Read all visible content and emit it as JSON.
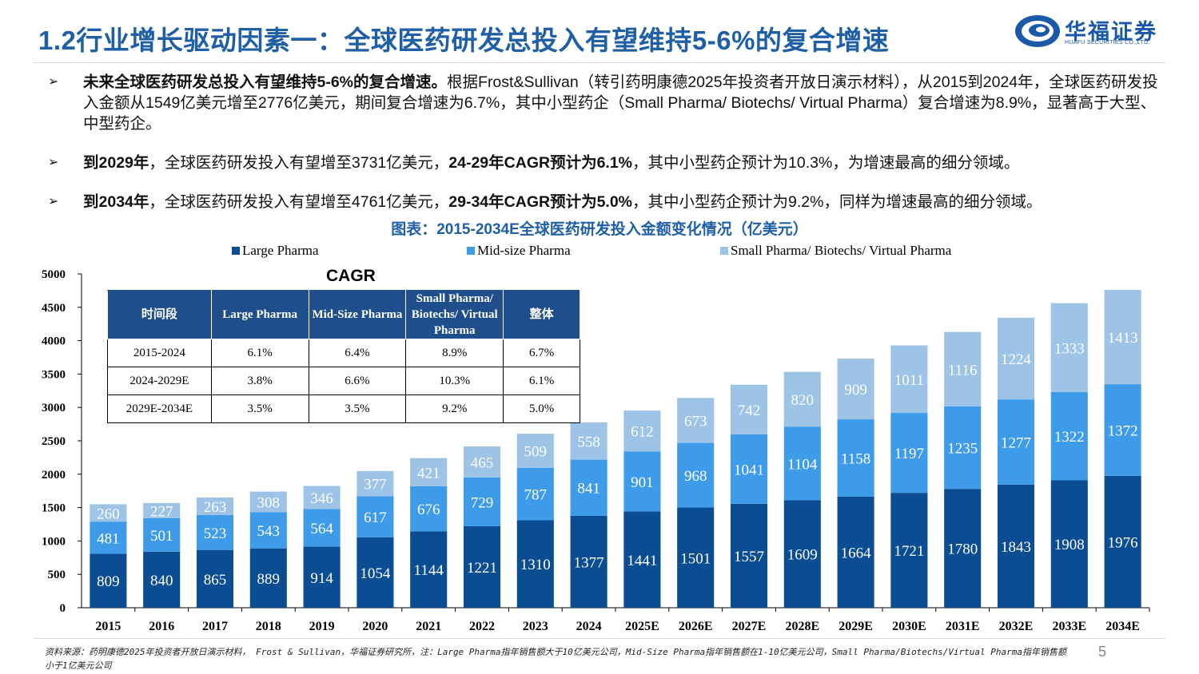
{
  "header": {
    "title": "1.2行业增长驱动因素一：全球医药研发总投入有望维持5-6%的复合增速",
    "logo_name": "华福证券",
    "logo_sub": "HUAFU SECURITIES CO.,LTD."
  },
  "bullets": [
    {
      "mark": "➢",
      "bold1": "未来全球医药研发总投入有望维持5-6%的复合增速。",
      "text1": "根据Frost&Sullivan（转引药明康德2025年投资者开放日演示材料），从2015到2024年，全球医药研发投入金额从1549亿美元增至2776亿美元，期间复合增速为6.7%，其中小型药企（Small Pharma/ Biotechs/ Virtual Pharma）复合增速为8.9%，显著高于大型、中型药企。"
    },
    {
      "mark": "➢",
      "bold1": "到2029年",
      "text1": "，全球医药研发投入有望增至3731亿美元，",
      "bold2": "24-29年CAGR预计为6.1%",
      "text2": "，其中小型药企预计为10.3%，为增速最高的细分领域。"
    },
    {
      "mark": "➢",
      "bold1": "到2034年",
      "text1": "，全球医药研发投入有望增至4761亿美元，",
      "bold2": "29-34年CAGR预计为5.0%",
      "text2": "，其中小型药企预计为9.2%，同样为增速最高的细分领域。"
    }
  ],
  "chart_title": "图表：2015-2034E全球医药研发投入金额变化情况（亿美元）",
  "chart_data": {
    "type": "bar",
    "stacked": true,
    "categories": [
      "2015",
      "2016",
      "2017",
      "2018",
      "2019",
      "2020",
      "2021",
      "2022",
      "2023",
      "2024",
      "2025E",
      "2026E",
      "2027E",
      "2028E",
      "2029E",
      "2030E",
      "2031E",
      "2032E",
      "2033E",
      "2034E"
    ],
    "series": [
      {
        "name": "Large Pharma",
        "color": "#0b4d92",
        "values": [
          809,
          840,
          865,
          889,
          914,
          1054,
          1144,
          1221,
          1310,
          1377,
          1441,
          1501,
          1557,
          1609,
          1664,
          1721,
          1780,
          1843,
          1908,
          1976
        ]
      },
      {
        "name": "Mid-size Pharma",
        "color": "#3d9be9",
        "values": [
          481,
          501,
          523,
          543,
          564,
          617,
          676,
          729,
          787,
          841,
          901,
          968,
          1041,
          1104,
          1158,
          1197,
          1235,
          1277,
          1322,
          1372
        ]
      },
      {
        "name": "Small Pharma/ Biotechs/ Virtual Pharma",
        "color": "#9dc3e6",
        "values": [
          260,
          227,
          263,
          308,
          346,
          377,
          421,
          465,
          509,
          558,
          612,
          673,
          742,
          820,
          909,
          1011,
          1116,
          1224,
          1333,
          1413
        ]
      }
    ],
    "ylim": [
      0,
      5000
    ],
    "yticks": [
      0,
      500,
      1000,
      1500,
      2000,
      2500,
      3000,
      3500,
      4000,
      4500,
      5000
    ],
    "legend_position": "top",
    "grid": false
  },
  "cagr_table": {
    "label": "CAGR",
    "headers": [
      "时间段",
      "Large Pharma",
      "Mid-Size Pharma",
      "Small Pharma/ Biotechs/ Virtual Pharma",
      "整体"
    ],
    "rows": [
      [
        "2015-2024",
        "6.1%",
        "6.4%",
        "8.9%",
        "6.7%"
      ],
      [
        "2024-2029E",
        "3.8%",
        "6.6%",
        "10.3%",
        "6.1%"
      ],
      [
        "2029E-2034E",
        "3.5%",
        "3.5%",
        "9.2%",
        "5.0%"
      ]
    ]
  },
  "source": "资料来源：药明康德2025年投资者开放日演示材料， Frost & Sullivan，华福证券研究所，注：Large Pharma指年销售额大于10亿美元公司，Mid-Size Pharma指年销售额在1-10亿美元公司，Small Pharma/Biotechs/Virtual Pharma指年销售额小于1亿美元公司",
  "page_number": "5"
}
